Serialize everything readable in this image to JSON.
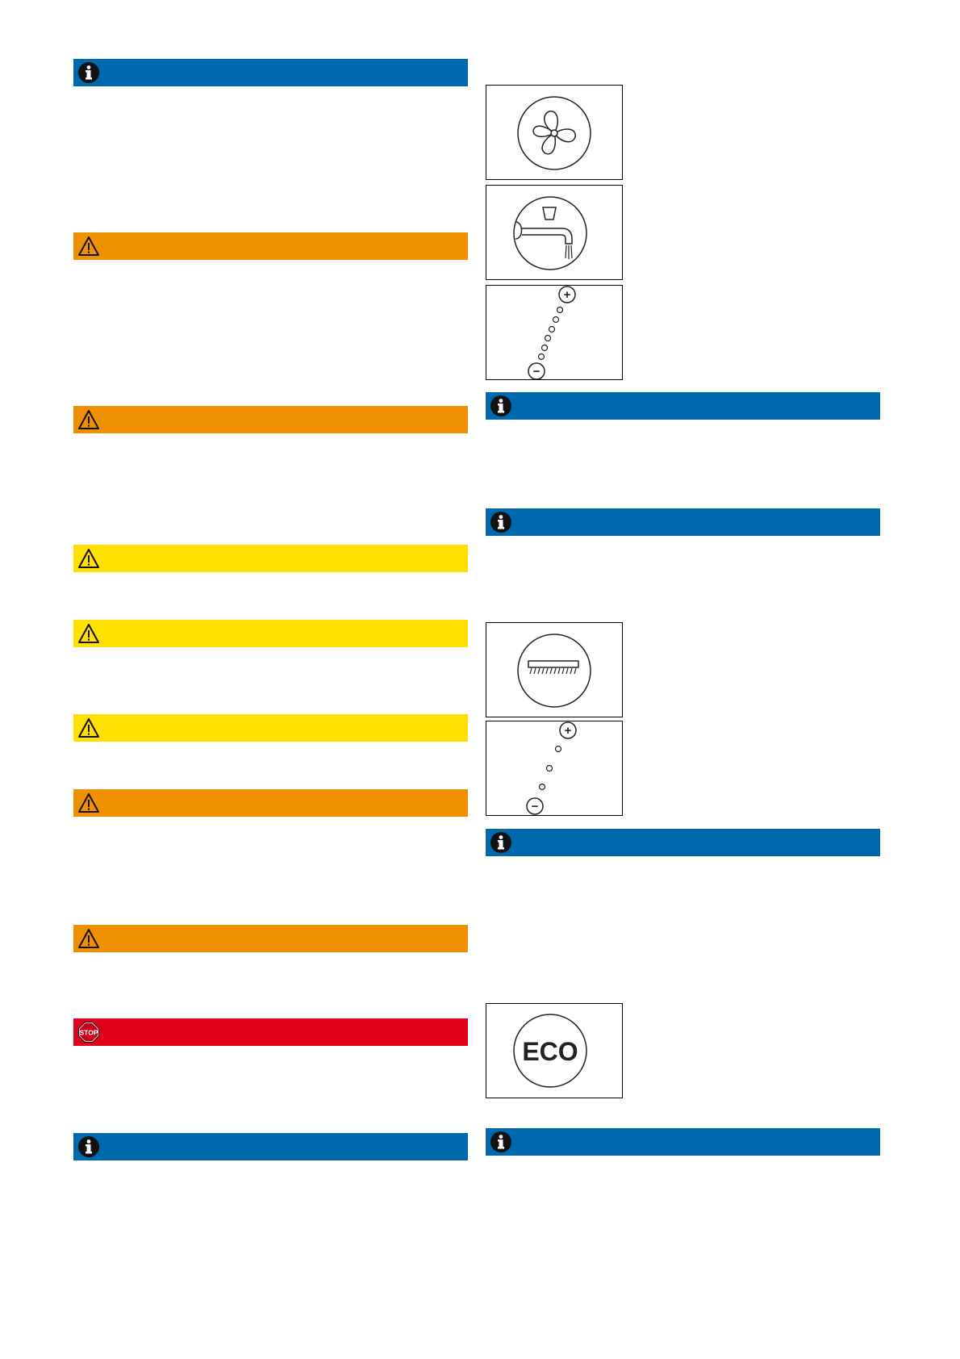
{
  "colors": {
    "info_blue": "#0069ad",
    "warning_orange": "#ef9000",
    "caution_yellow": "#ffe000",
    "danger_red": "#e2001a"
  },
  "left_column": {
    "notice_bars": [
      {
        "type": "info",
        "icon": "info-icon"
      },
      {
        "type": "warning",
        "icon": "warning-triangle-icon"
      },
      {
        "type": "warning",
        "icon": "warning-triangle-icon"
      },
      {
        "type": "caution",
        "icon": "warning-triangle-icon"
      },
      {
        "type": "caution",
        "icon": "warning-triangle-icon"
      },
      {
        "type": "caution",
        "icon": "warning-triangle-icon"
      },
      {
        "type": "warning",
        "icon": "warning-triangle-icon"
      },
      {
        "type": "warning",
        "icon": "warning-triangle-icon"
      },
      {
        "type": "danger",
        "icon": "stop-sign-icon"
      },
      {
        "type": "info",
        "icon": "info-icon"
      }
    ]
  },
  "right_column": {
    "symbols": [
      {
        "icon": "fan-icon"
      },
      {
        "icon": "water-tap-icon"
      },
      {
        "icon": "intensity-scale-icon",
        "plus": "+",
        "minus": "−"
      },
      {
        "icon": "brush-icon"
      },
      {
        "icon": "intensity-scale-icon",
        "plus": "+",
        "minus": "−"
      },
      {
        "icon": "eco-icon",
        "label": "ECO"
      }
    ],
    "notice_bars": [
      {
        "type": "info",
        "icon": "info-icon"
      },
      {
        "type": "info",
        "icon": "info-icon"
      },
      {
        "type": "info",
        "icon": "info-icon"
      },
      {
        "type": "info",
        "icon": "info-icon"
      }
    ]
  }
}
